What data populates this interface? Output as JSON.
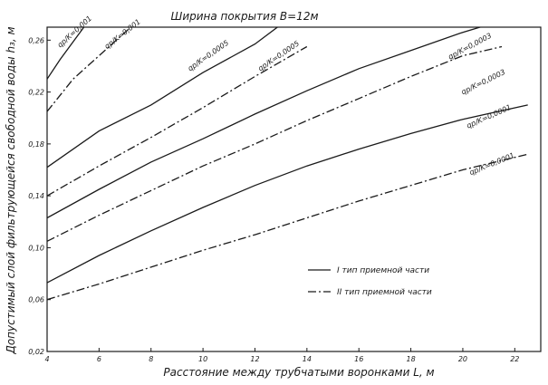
{
  "chart_data": {
    "type": "line",
    "title": "Ширина покрытия  B=12м",
    "xlabel": "Расстояние между трубчатыми воронками  L, м",
    "ylabel": "Допустимый слой фильтрующейся свободной воды  h₃, м",
    "xlim": [
      4,
      23
    ],
    "ylim": [
      0.02,
      0.27
    ],
    "x_ticks": [
      "4",
      "6",
      "8",
      "10",
      "12",
      "14",
      "16",
      "18",
      "20",
      "22"
    ],
    "y_ticks": [
      "0,02",
      "0,06",
      "0,10",
      "0,14",
      "0,18",
      "0,22",
      "0,26"
    ],
    "grid": false,
    "legend": [
      {
        "style": "solid",
        "label": "I тип приемной части"
      },
      {
        "style": "dashdot",
        "label": "II тип приемной части"
      }
    ],
    "series": [
      {
        "name": "qр/K=0,001",
        "type": "I",
        "x": [
          4,
          4.5,
          5.6
        ],
        "y": [
          0.23,
          0.245,
          0.275
        ]
      },
      {
        "name": "qр/K=0,001",
        "type": "II",
        "x": [
          4,
          5,
          7.5
        ],
        "y": [
          0.205,
          0.23,
          0.275
        ]
      },
      {
        "name": "qр/K=0,0005",
        "type": "I",
        "x": [
          4,
          6,
          8,
          10,
          12,
          13.2
        ],
        "y": [
          0.162,
          0.19,
          0.21,
          0.235,
          0.257,
          0.275
        ]
      },
      {
        "name": "qр/K=0,0005",
        "type": "II",
        "x": [
          4,
          6,
          8,
          10,
          12,
          14
        ],
        "y": [
          0.14,
          0.163,
          0.185,
          0.208,
          0.232,
          0.255
        ]
      },
      {
        "name": "qр/K=0,0003",
        "type": "I",
        "x": [
          4,
          6,
          8,
          10,
          12,
          14,
          16,
          18,
          20,
          21.5
        ],
        "y": [
          0.123,
          0.145,
          0.166,
          0.184,
          0.203,
          0.221,
          0.238,
          0.252,
          0.266,
          0.275
        ]
      },
      {
        "name": "qр/K=0,0003",
        "type": "II",
        "x": [
          4,
          6,
          8,
          10,
          12,
          14,
          16,
          18,
          20,
          21.5
        ],
        "y": [
          0.105,
          0.125,
          0.144,
          0.163,
          0.18,
          0.198,
          0.215,
          0.232,
          0.248,
          0.255
        ]
      },
      {
        "name": "qр/K=0,0001",
        "type": "I",
        "x": [
          4,
          6,
          8,
          10,
          12,
          14,
          16,
          18,
          20,
          22.5
        ],
        "y": [
          0.073,
          0.094,
          0.113,
          0.131,
          0.148,
          0.163,
          0.176,
          0.188,
          0.199,
          0.21
        ]
      },
      {
        "name": "qр/K=0,0001",
        "type": "II",
        "x": [
          4,
          6,
          8,
          10,
          12,
          14,
          16,
          18,
          20,
          22.5
        ],
        "y": [
          0.06,
          0.072,
          0.085,
          0.098,
          0.11,
          0.123,
          0.136,
          0.148,
          0.16,
          0.172
        ]
      }
    ],
    "curve_labels": [
      "qр/K=0,001",
      "qр/K=0,001",
      "qр/K=0,0005",
      "qр/K=0,0005",
      "qр/K=0,0003",
      "qр/K=0,0003",
      "qр/K=0,0001",
      "qр/K=0,0001"
    ]
  }
}
